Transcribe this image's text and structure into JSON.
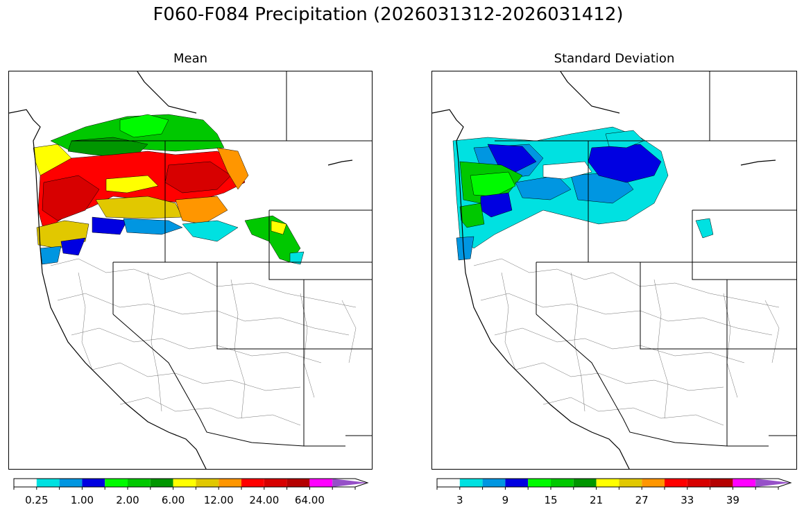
{
  "figure": {
    "title": "F060-F084 Precipitation (2026031312-2026031412)"
  },
  "panels": [
    {
      "title": "Mean",
      "colorbar": {
        "colors": [
          "#ffffff",
          "#00e1e1",
          "#0096e1",
          "#0000e1",
          "#00fa00",
          "#00c800",
          "#009600",
          "#ffff00",
          "#e1c800",
          "#ff9600",
          "#ff0000",
          "#d70000",
          "#b40000",
          "#ff00ff",
          "#9650c8"
        ],
        "extend": "max",
        "tick_labels": [
          "0.25",
          "1.00",
          "2.00",
          "6.00",
          "12.00",
          "24.00",
          "64.00"
        ]
      }
    },
    {
      "title": "Standard Deviation",
      "colorbar": {
        "colors": [
          "#ffffff",
          "#00e1e1",
          "#0096e1",
          "#0000e1",
          "#00fa00",
          "#00c800",
          "#009600",
          "#ffff00",
          "#e1c800",
          "#ff9600",
          "#ff0000",
          "#d70000",
          "#b40000",
          "#ff00ff",
          "#9650c8"
        ],
        "extend": "max",
        "tick_labels": [
          "3",
          "9",
          "15",
          "21",
          "27",
          "33",
          "39"
        ]
      }
    }
  ]
}
